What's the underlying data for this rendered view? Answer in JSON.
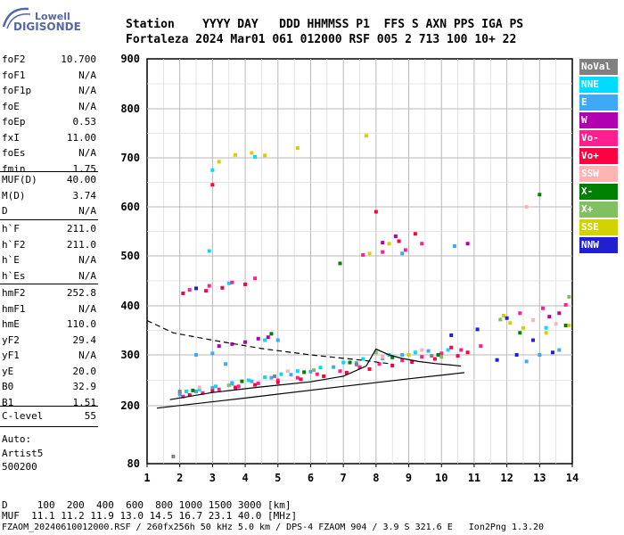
{
  "logo": {
    "line1": "Lowell",
    "line2": "DIGISONDE"
  },
  "header": {
    "row1": "Station    YYYY DAY   DDD HHMMSS P1  FFS S AXN PPS IGA PS",
    "row2": "Fortaleza 2024 Mar01 061 012000 RSF 005 2 713 100 10+ 22"
  },
  "params": {
    "group1": [
      {
        "label": "foF2",
        "value": "10.700"
      },
      {
        "label": "foF1",
        "value": "N/A"
      },
      {
        "label": "foF1p",
        "value": "N/A"
      },
      {
        "label": "foE",
        "value": "N/A"
      },
      {
        "label": "foEp",
        "value": "0.53"
      },
      {
        "label": "fxI",
        "value": "11.00"
      },
      {
        "label": "foEs",
        "value": "N/A"
      },
      {
        "label": "fmin",
        "value": "1.75"
      }
    ],
    "group2": [
      {
        "label": "MUF(D)",
        "value": "40.00"
      },
      {
        "label": "M(D)",
        "value": "3.74"
      },
      {
        "label": "D",
        "value": "N/A"
      }
    ],
    "group3": [
      {
        "label": "h`F",
        "value": "211.0"
      },
      {
        "label": "h`F2",
        "value": "211.0"
      },
      {
        "label": "h`E",
        "value": "N/A"
      },
      {
        "label": "h`Es",
        "value": "N/A"
      }
    ],
    "group4": [
      {
        "label": "hmF2",
        "value": "252.8"
      },
      {
        "label": "hmF1",
        "value": "N/A"
      },
      {
        "label": "hmE",
        "value": "110.0"
      },
      {
        "label": "yF2",
        "value": "29.4"
      },
      {
        "label": "yF1",
        "value": "N/A"
      },
      {
        "label": "yE",
        "value": "20.0"
      },
      {
        "label": "B0",
        "value": "32.9"
      },
      {
        "label": "B1",
        "value": "1.51"
      }
    ],
    "clevel": {
      "label": "C-level",
      "value": "55"
    },
    "auto": [
      "Auto:",
      "Artist5",
      "500200"
    ]
  },
  "legend": [
    {
      "label": "NoVal",
      "color": "#808080"
    },
    {
      "label": "NNE",
      "color": "#00dcff"
    },
    {
      "label": "E",
      "color": "#3fa9f5"
    },
    {
      "label": "W",
      "color": "#b000b0"
    },
    {
      "label": "Vo-",
      "color": "#ff1f8f"
    },
    {
      "label": "Vo+",
      "color": "#ff0040"
    },
    {
      "label": "SSW",
      "color": "#ffb3b3"
    },
    {
      "label": "X-",
      "color": "#008000"
    },
    {
      "label": "X+",
      "color": "#80c060"
    },
    {
      "label": "SSE",
      "color": "#d2d200"
    },
    {
      "label": "NNW",
      "color": "#2020d0"
    }
  ],
  "chart_data": {
    "type": "scatter",
    "xlim": [
      1,
      14
    ],
    "ylim": [
      80,
      900
    ],
    "x_ticks": [
      "1",
      "2",
      "3",
      "4",
      "5",
      "6",
      "7",
      "8",
      "9",
      "10",
      "11",
      "12",
      "13",
      "14"
    ],
    "y_ticks": [
      "80",
      "200",
      "300",
      "400",
      "500",
      "600",
      "700",
      "800",
      "900"
    ],
    "y_tick_values": [
      80,
      200,
      300,
      400,
      500,
      600,
      700,
      800,
      900
    ],
    "grid": true,
    "series": [
      {
        "name": "NNE",
        "points": [
          [
            2.2,
            228
          ],
          [
            2.6,
            232
          ],
          [
            3.1,
            238
          ],
          [
            3.6,
            245
          ],
          [
            4.1,
            250
          ],
          [
            4.6,
            256
          ],
          [
            5.1,
            262
          ],
          [
            5.6,
            268
          ],
          [
            6.3,
            275
          ],
          [
            7.0,
            285
          ],
          [
            7.6,
            292
          ],
          [
            8.4,
            300
          ],
          [
            9.2,
            305
          ],
          [
            10.2,
            310
          ],
          [
            3.0,
            675
          ],
          [
            4.3,
            702
          ],
          [
            2.9,
            510
          ],
          [
            3.5,
            445
          ],
          [
            4.6,
            330
          ],
          [
            13.2,
            355
          ]
        ]
      },
      {
        "name": "E",
        "points": [
          [
            2.0,
            222
          ],
          [
            2.5,
            228
          ],
          [
            3.0,
            235
          ],
          [
            3.6,
            243
          ],
          [
            4.2,
            248
          ],
          [
            4.8,
            255
          ],
          [
            5.4,
            261
          ],
          [
            6.0,
            267
          ],
          [
            6.7,
            276
          ],
          [
            7.4,
            284
          ],
          [
            8.2,
            293
          ],
          [
            8.8,
            300
          ],
          [
            9.6,
            308
          ],
          [
            10.4,
            520
          ],
          [
            2.5,
            300
          ],
          [
            3.0,
            303
          ],
          [
            3.4,
            282
          ],
          [
            13.0,
            300
          ],
          [
            13.6,
            310
          ],
          [
            12.6,
            287
          ],
          [
            5.0,
            330
          ],
          [
            8.8,
            505
          ]
        ]
      },
      {
        "name": "W",
        "points": [
          [
            3.2,
            318
          ],
          [
            3.6,
            322
          ],
          [
            4.0,
            326
          ],
          [
            4.4,
            333
          ],
          [
            4.7,
            336
          ],
          [
            8.2,
            527
          ],
          [
            8.6,
            540
          ],
          [
            10.8,
            525
          ],
          [
            13.6,
            385
          ],
          [
            13.3,
            378
          ]
        ]
      },
      {
        "name": "Vo-",
        "points": [
          [
            2.1,
            218
          ],
          [
            2.7,
            225
          ],
          [
            3.2,
            232
          ],
          [
            3.8,
            238
          ],
          [
            4.4,
            244
          ],
          [
            5.0,
            250
          ],
          [
            5.6,
            255
          ],
          [
            6.2,
            262
          ],
          [
            6.9,
            268
          ],
          [
            7.5,
            276
          ],
          [
            8.1,
            282
          ],
          [
            8.8,
            289
          ],
          [
            9.4,
            296
          ],
          [
            10.0,
            303
          ],
          [
            10.6,
            310
          ],
          [
            2.3,
            432
          ],
          [
            2.9,
            440
          ],
          [
            3.6,
            447
          ],
          [
            4.3,
            455
          ],
          [
            7.6,
            502
          ],
          [
            8.2,
            508
          ],
          [
            8.9,
            512
          ],
          [
            9.4,
            525
          ],
          [
            12.4,
            385
          ],
          [
            13.1,
            395
          ],
          [
            13.8,
            402
          ],
          [
            11.2,
            318
          ]
        ]
      },
      {
        "name": "Vo+",
        "points": [
          [
            2.3,
            221
          ],
          [
            3.0,
            229
          ],
          [
            3.7,
            236
          ],
          [
            4.3,
            241
          ],
          [
            5.0,
            246
          ],
          [
            5.7,
            252
          ],
          [
            6.4,
            258
          ],
          [
            7.1,
            265
          ],
          [
            7.8,
            272
          ],
          [
            8.5,
            279
          ],
          [
            9.1,
            286
          ],
          [
            9.8,
            292
          ],
          [
            10.5,
            298
          ],
          [
            2.1,
            425
          ],
          [
            2.8,
            430
          ],
          [
            3.3,
            436
          ],
          [
            4.0,
            443
          ],
          [
            8.7,
            530
          ],
          [
            9.2,
            545
          ],
          [
            3.0,
            645
          ],
          [
            8.0,
            590
          ],
          [
            10.3,
            315
          ],
          [
            10.8,
            305
          ]
        ]
      },
      {
        "name": "SSW",
        "points": [
          [
            2.6,
            236
          ],
          [
            5.3,
            268
          ],
          [
            8.2,
            296
          ],
          [
            9.4,
            310
          ],
          [
            12.6,
            600
          ],
          [
            13.5,
            363
          ],
          [
            12.8,
            371
          ]
        ]
      },
      {
        "name": "X-",
        "points": [
          [
            2.4,
            230
          ],
          [
            3.9,
            248
          ],
          [
            5.8,
            266
          ],
          [
            7.2,
            285
          ],
          [
            8.5,
            295
          ],
          [
            9.9,
            300
          ],
          [
            13.0,
            625
          ],
          [
            12.4,
            345
          ],
          [
            13.8,
            360
          ],
          [
            4.8,
            343
          ],
          [
            6.9,
            485
          ]
        ]
      },
      {
        "name": "X+",
        "points": [
          [
            3.5,
            240
          ],
          [
            6.1,
            270
          ],
          [
            8.0,
            305
          ],
          [
            10.0,
            296
          ],
          [
            11.8,
            372
          ],
          [
            13.9,
            418
          ]
        ]
      },
      {
        "name": "SSE",
        "points": [
          [
            3.2,
            692
          ],
          [
            3.7,
            706
          ],
          [
            4.2,
            710
          ],
          [
            4.6,
            705
          ],
          [
            5.6,
            720
          ],
          [
            7.7,
            745
          ],
          [
            8.4,
            525
          ],
          [
            7.8,
            505
          ],
          [
            11.9,
            380
          ],
          [
            12.5,
            355
          ],
          [
            13.2,
            345
          ],
          [
            13.9,
            360
          ],
          [
            12.1,
            365
          ],
          [
            9.0,
            300
          ]
        ]
      },
      {
        "name": "NNW",
        "points": [
          [
            2.5,
            435
          ],
          [
            12.8,
            330
          ],
          [
            13.4,
            305
          ],
          [
            12.3,
            300
          ],
          [
            11.7,
            290
          ],
          [
            10.3,
            340
          ],
          [
            11.1,
            352
          ],
          [
            12.0,
            375
          ]
        ]
      },
      {
        "name": "NoVal",
        "points": [
          [
            2.0,
            228
          ],
          [
            4.9,
            258
          ],
          [
            7.4,
            281
          ],
          [
            9.7,
            298
          ],
          [
            1.8,
            95
          ]
        ]
      }
    ],
    "lines": [
      {
        "name": "trace",
        "points": [
          [
            1.7,
            212
          ],
          [
            3.0,
            226
          ],
          [
            4.5,
            237
          ],
          [
            6.0,
            247
          ],
          [
            7.0,
            258
          ],
          [
            7.7,
            278
          ],
          [
            8.0,
            312
          ],
          [
            8.4,
            300
          ],
          [
            8.8,
            293
          ],
          [
            9.3,
            287
          ],
          [
            9.8,
            283
          ],
          [
            10.3,
            280
          ],
          [
            10.6,
            278
          ]
        ]
      },
      {
        "name": "dashed",
        "dashed": true,
        "points": [
          [
            1.0,
            370
          ],
          [
            1.8,
            345
          ],
          [
            3.0,
            330
          ],
          [
            4.5,
            313
          ],
          [
            6.0,
            300
          ],
          [
            7.5,
            290
          ],
          [
            8.5,
            282
          ]
        ]
      },
      {
        "name": "lower",
        "points": [
          [
            1.3,
            195
          ],
          [
            4.0,
            215
          ],
          [
            7.0,
            238
          ],
          [
            9.0,
            253
          ],
          [
            10.7,
            265
          ]
        ]
      }
    ]
  },
  "footer": {
    "line1": "D     100  200  400  600  800 1000 1500 3000 [km]",
    "line2": "MUF  11.1 11.2 11.9 13.0 14.5 16.7 23.1 40.0 [MHz]",
    "line3": "FZAOM_20240610012000.RSF / 260fx256h 50 kHz 5.0 km / DPS-4 FZAOM 904 / 3.9 S 321.6 E   Ion2Png 1.3.20"
  }
}
